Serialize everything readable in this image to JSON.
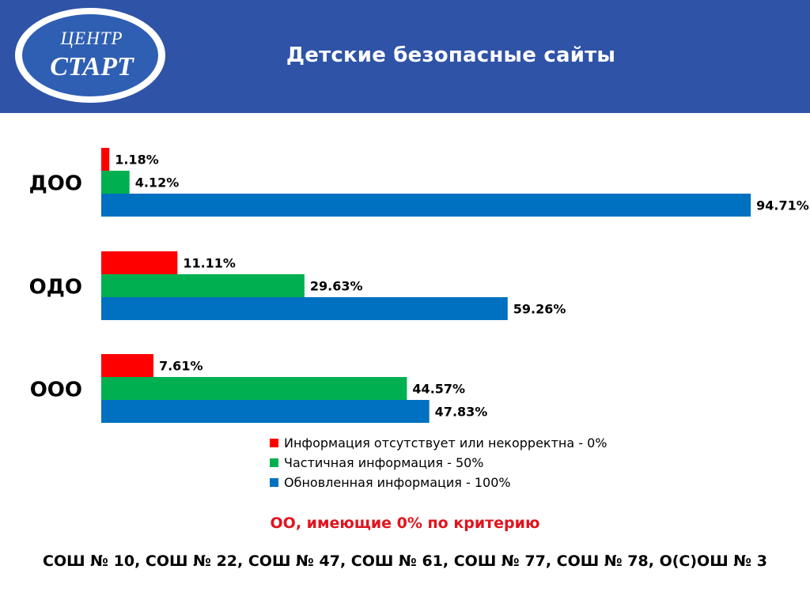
{
  "header": {
    "logo_line1": "ЦЕНТР",
    "logo_line2": "СТАРТ",
    "title": "Детские безопасные сайты"
  },
  "colors": {
    "header_bg": "#2f53a6",
    "red": "#ff0000",
    "green": "#00b050",
    "blue": "#0070c0",
    "criterion_text": "#e0141e"
  },
  "chart_data": {
    "type": "bar",
    "orientation": "horizontal",
    "title": "Детские безопасные сайты",
    "categories": [
      "ДОО",
      "ОДО",
      "ООО"
    ],
    "series": [
      {
        "name": "Информация отсутствует или некорректна - 0%",
        "color": "#ff0000",
        "values": [
          1.18,
          11.11,
          7.61
        ]
      },
      {
        "name": "Частичная информация - 50%",
        "color": "#00b050",
        "values": [
          4.12,
          29.63,
          44.57
        ]
      },
      {
        "name": "Обновленная информация - 100%",
        "color": "#0070c0",
        "values": [
          94.71,
          59.26,
          47.83
        ]
      }
    ],
    "value_labels": [
      [
        "1.18%",
        "4.12%",
        "94.71%"
      ],
      [
        "11.11%",
        "29.63%",
        "59.26%"
      ],
      [
        "7.61%",
        "44.57%",
        "47.83%"
      ]
    ],
    "xlim": [
      0,
      100
    ],
    "grid": false,
    "legend_position": "bottom"
  },
  "footer": {
    "criterion_title": "ОО, имеющие 0% по критерию",
    "school_list": "СОШ № 10, СОШ № 22, СОШ № 47, СОШ № 61, СОШ № 77, СОШ № 78, О(С)ОШ № 3"
  }
}
